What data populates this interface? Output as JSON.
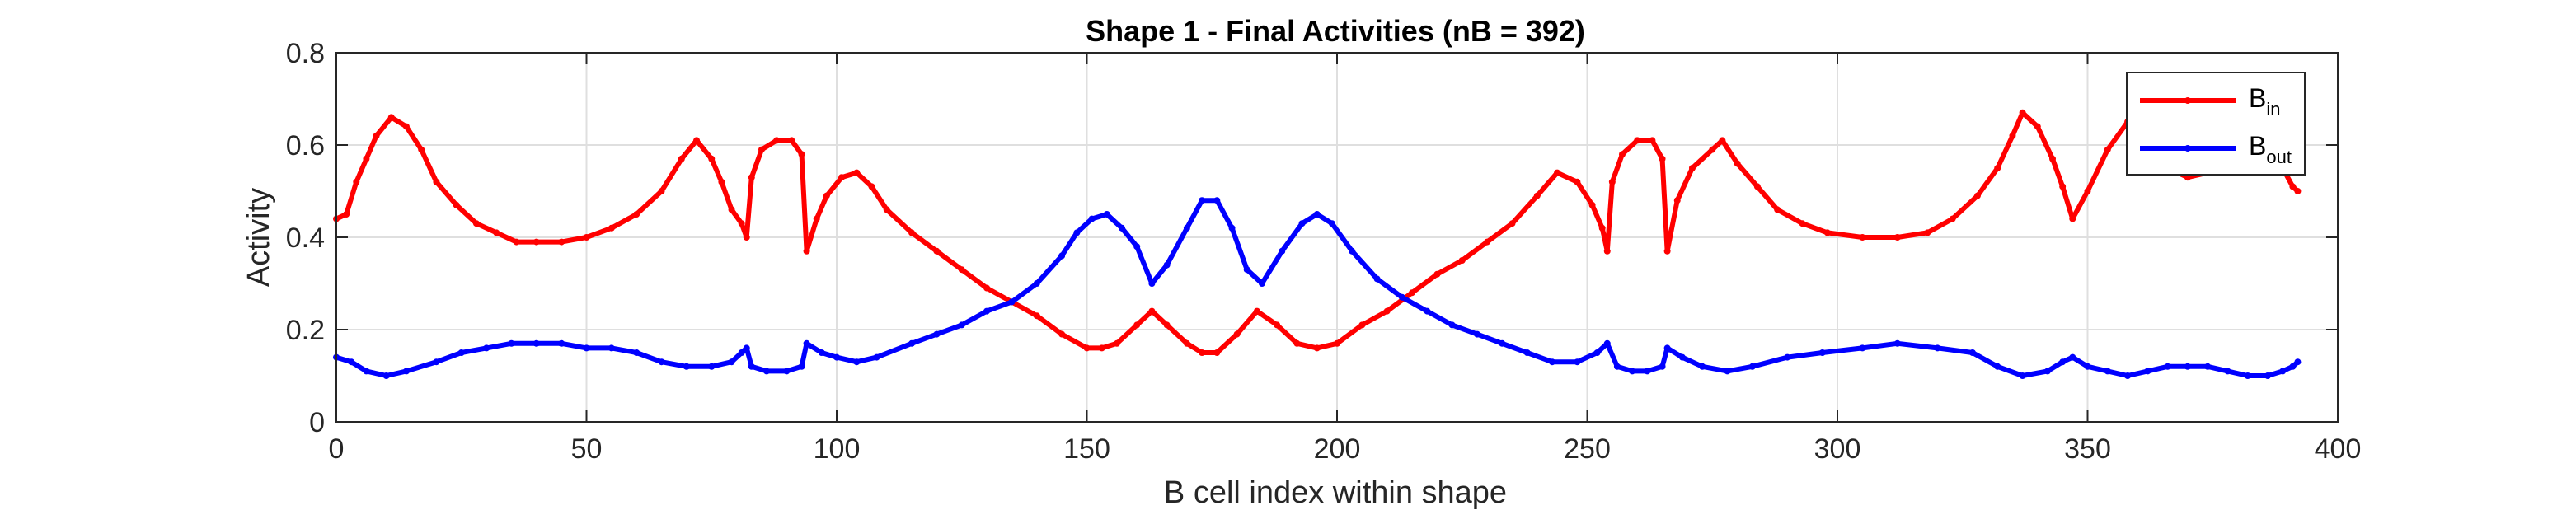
{
  "chart_data": {
    "type": "line",
    "title": "Shape 1 - Final Activities (nB = 392)",
    "xlabel": "B cell index within shape",
    "ylabel": "Activity",
    "xlim": [
      0,
      400
    ],
    "ylim": [
      0,
      0.8
    ],
    "xticks": [
      "0",
      "50",
      "100",
      "150",
      "200",
      "250",
      "300",
      "350",
      "400"
    ],
    "yticks": [
      "0",
      "0.2",
      "0.4",
      "0.6",
      "0.8"
    ],
    "grid": true,
    "legend": "top-right",
    "series": [
      {
        "name": "B",
        "name_sub": "in",
        "color": "#ff0000",
        "marker": "dot",
        "points": [
          [
            0,
            0.44
          ],
          [
            2,
            0.45
          ],
          [
            4,
            0.52
          ],
          [
            6,
            0.57
          ],
          [
            8,
            0.62
          ],
          [
            11,
            0.66
          ],
          [
            14,
            0.64
          ],
          [
            17,
            0.59
          ],
          [
            20,
            0.52
          ],
          [
            24,
            0.47
          ],
          [
            28,
            0.43
          ],
          [
            32,
            0.41
          ],
          [
            36,
            0.39
          ],
          [
            40,
            0.39
          ],
          [
            45,
            0.39
          ],
          [
            50,
            0.4
          ],
          [
            55,
            0.42
          ],
          [
            60,
            0.45
          ],
          [
            65,
            0.5
          ],
          [
            69,
            0.57
          ],
          [
            72,
            0.61
          ],
          [
            75,
            0.57
          ],
          [
            77,
            0.52
          ],
          [
            79,
            0.46
          ],
          [
            81,
            0.43
          ],
          [
            82,
            0.4
          ],
          [
            83,
            0.53
          ],
          [
            85,
            0.59
          ],
          [
            88,
            0.61
          ],
          [
            91,
            0.61
          ],
          [
            93,
            0.58
          ],
          [
            94,
            0.37
          ],
          [
            96,
            0.44
          ],
          [
            98,
            0.49
          ],
          [
            101,
            0.53
          ],
          [
            104,
            0.54
          ],
          [
            107,
            0.51
          ],
          [
            110,
            0.46
          ],
          [
            115,
            0.41
          ],
          [
            120,
            0.37
          ],
          [
            125,
            0.33
          ],
          [
            130,
            0.29
          ],
          [
            135,
            0.26
          ],
          [
            140,
            0.23
          ],
          [
            145,
            0.19
          ],
          [
            150,
            0.16
          ],
          [
            153,
            0.16
          ],
          [
            156,
            0.17
          ],
          [
            160,
            0.21
          ],
          [
            163,
            0.24
          ],
          [
            166,
            0.21
          ],
          [
            170,
            0.17
          ],
          [
            173,
            0.15
          ],
          [
            176,
            0.15
          ],
          [
            180,
            0.19
          ],
          [
            184,
            0.24
          ],
          [
            188,
            0.21
          ],
          [
            192,
            0.17
          ],
          [
            196,
            0.16
          ],
          [
            200,
            0.17
          ],
          [
            205,
            0.21
          ],
          [
            210,
            0.24
          ],
          [
            215,
            0.28
          ],
          [
            220,
            0.32
          ],
          [
            225,
            0.35
          ],
          [
            230,
            0.39
          ],
          [
            235,
            0.43
          ],
          [
            240,
            0.49
          ],
          [
            244,
            0.54
          ],
          [
            248,
            0.52
          ],
          [
            251,
            0.47
          ],
          [
            253,
            0.42
          ],
          [
            254,
            0.37
          ],
          [
            255,
            0.52
          ],
          [
            257,
            0.58
          ],
          [
            260,
            0.61
          ],
          [
            263,
            0.61
          ],
          [
            265,
            0.57
          ],
          [
            266,
            0.37
          ],
          [
            268,
            0.48
          ],
          [
            271,
            0.55
          ],
          [
            275,
            0.59
          ],
          [
            277,
            0.61
          ],
          [
            280,
            0.56
          ],
          [
            284,
            0.51
          ],
          [
            288,
            0.46
          ],
          [
            293,
            0.43
          ],
          [
            298,
            0.41
          ],
          [
            305,
            0.4
          ],
          [
            312,
            0.4
          ],
          [
            318,
            0.41
          ],
          [
            323,
            0.44
          ],
          [
            328,
            0.49
          ],
          [
            332,
            0.55
          ],
          [
            335,
            0.62
          ],
          [
            337,
            0.67
          ],
          [
            340,
            0.64
          ],
          [
            343,
            0.57
          ],
          [
            345,
            0.51
          ],
          [
            347,
            0.44
          ],
          [
            350,
            0.5
          ],
          [
            354,
            0.59
          ],
          [
            358,
            0.65
          ],
          [
            361,
            0.68
          ],
          [
            365,
            0.58
          ],
          [
            368,
            0.54
          ],
          [
            370,
            0.53
          ],
          [
            374,
            0.54
          ],
          [
            378,
            0.6
          ],
          [
            382,
            0.66
          ],
          [
            386,
            0.58
          ],
          [
            389,
            0.55
          ],
          [
            391,
            0.51
          ],
          [
            392,
            0.5
          ]
        ]
      },
      {
        "name": "B",
        "name_sub": "out",
        "color": "#0000ff",
        "marker": "dot",
        "points": [
          [
            0,
            0.14
          ],
          [
            3,
            0.13
          ],
          [
            6,
            0.11
          ],
          [
            10,
            0.1
          ],
          [
            14,
            0.11
          ],
          [
            20,
            0.13
          ],
          [
            25,
            0.15
          ],
          [
            30,
            0.16
          ],
          [
            35,
            0.17
          ],
          [
            40,
            0.17
          ],
          [
            45,
            0.17
          ],
          [
            50,
            0.16
          ],
          [
            55,
            0.16
          ],
          [
            60,
            0.15
          ],
          [
            65,
            0.13
          ],
          [
            70,
            0.12
          ],
          [
            75,
            0.12
          ],
          [
            79,
            0.13
          ],
          [
            81,
            0.15
          ],
          [
            82,
            0.16
          ],
          [
            83,
            0.12
          ],
          [
            86,
            0.11
          ],
          [
            90,
            0.11
          ],
          [
            93,
            0.12
          ],
          [
            94,
            0.17
          ],
          [
            97,
            0.15
          ],
          [
            100,
            0.14
          ],
          [
            104,
            0.13
          ],
          [
            108,
            0.14
          ],
          [
            115,
            0.17
          ],
          [
            120,
            0.19
          ],
          [
            125,
            0.21
          ],
          [
            130,
            0.24
          ],
          [
            135,
            0.26
          ],
          [
            140,
            0.3
          ],
          [
            145,
            0.36
          ],
          [
            148,
            0.41
          ],
          [
            151,
            0.44
          ],
          [
            154,
            0.45
          ],
          [
            157,
            0.42
          ],
          [
            160,
            0.38
          ],
          [
            163,
            0.3
          ],
          [
            166,
            0.34
          ],
          [
            170,
            0.42
          ],
          [
            173,
            0.48
          ],
          [
            176,
            0.48
          ],
          [
            179,
            0.42
          ],
          [
            182,
            0.33
          ],
          [
            185,
            0.3
          ],
          [
            189,
            0.37
          ],
          [
            193,
            0.43
          ],
          [
            196,
            0.45
          ],
          [
            199,
            0.43
          ],
          [
            203,
            0.37
          ],
          [
            208,
            0.31
          ],
          [
            213,
            0.27
          ],
          [
            218,
            0.24
          ],
          [
            223,
            0.21
          ],
          [
            228,
            0.19
          ],
          [
            233,
            0.17
          ],
          [
            238,
            0.15
          ],
          [
            243,
            0.13
          ],
          [
            248,
            0.13
          ],
          [
            252,
            0.15
          ],
          [
            254,
            0.17
          ],
          [
            256,
            0.12
          ],
          [
            259,
            0.11
          ],
          [
            262,
            0.11
          ],
          [
            265,
            0.12
          ],
          [
            266,
            0.16
          ],
          [
            269,
            0.14
          ],
          [
            273,
            0.12
          ],
          [
            278,
            0.11
          ],
          [
            283,
            0.12
          ],
          [
            290,
            0.14
          ],
          [
            297,
            0.15
          ],
          [
            305,
            0.16
          ],
          [
            312,
            0.17
          ],
          [
            320,
            0.16
          ],
          [
            327,
            0.15
          ],
          [
            332,
            0.12
          ],
          [
            337,
            0.1
          ],
          [
            342,
            0.11
          ],
          [
            345,
            0.13
          ],
          [
            347,
            0.14
          ],
          [
            350,
            0.12
          ],
          [
            354,
            0.11
          ],
          [
            358,
            0.1
          ],
          [
            362,
            0.11
          ],
          [
            366,
            0.12
          ],
          [
            370,
            0.12
          ],
          [
            374,
            0.12
          ],
          [
            378,
            0.11
          ],
          [
            382,
            0.1
          ],
          [
            386,
            0.1
          ],
          [
            389,
            0.11
          ],
          [
            391,
            0.12
          ],
          [
            392,
            0.13
          ]
        ]
      }
    ]
  }
}
